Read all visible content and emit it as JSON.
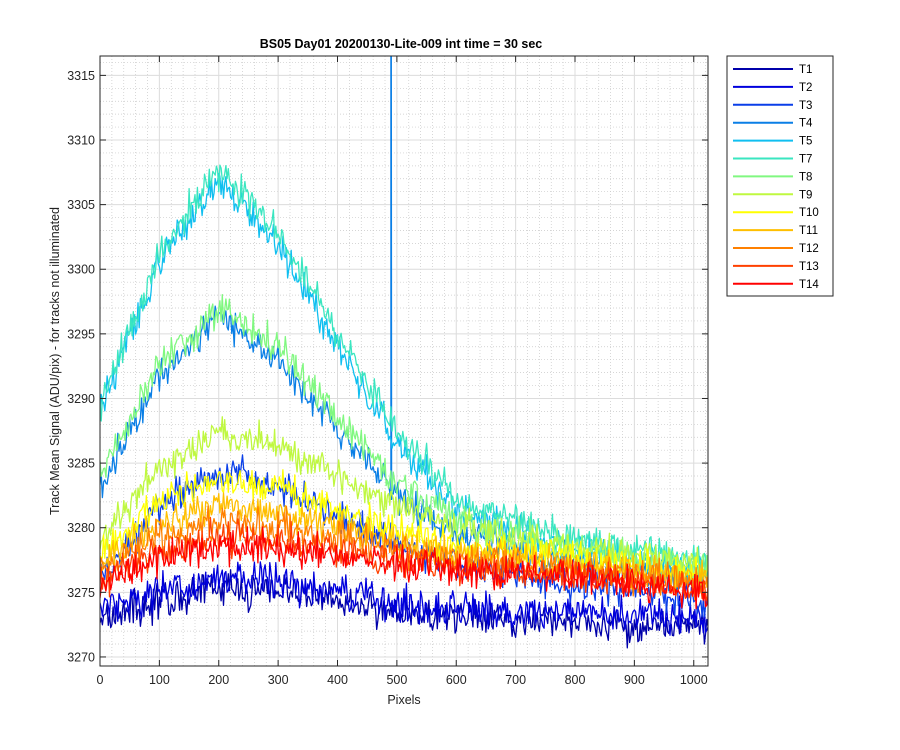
{
  "chart_data": {
    "type": "line",
    "title": "BS05 Day01 20200130-Lite-009 int time = 30 sec",
    "xlabel": "Pixels",
    "ylabel": "Track Mean Signal (ADU/pix) - for tracks not illuminated",
    "xlim": [
      0,
      1024
    ],
    "ylim": [
      3269.3,
      3316.5
    ],
    "xticks": [
      0,
      100,
      200,
      300,
      400,
      500,
      600,
      700,
      800,
      900,
      1000
    ],
    "yticks": [
      3270,
      3275,
      3280,
      3285,
      3290,
      3295,
      3300,
      3305,
      3310,
      3315
    ],
    "grid": true,
    "minor_grid": true,
    "legend_position": "outside-right",
    "series": [
      {
        "name": "T1",
        "color": "#0000aa",
        "profile_x": [
          0,
          200,
          300,
          400,
          500,
          600,
          800,
          1024
        ],
        "profile_y": [
          3273.2,
          3275.3,
          3275.2,
          3274.3,
          3273.5,
          3273.1,
          3272.7,
          3272.3
        ],
        "noise": 1.3
      },
      {
        "name": "T2",
        "color": "#0000dd",
        "profile_x": [
          0,
          200,
          300,
          400,
          500,
          600,
          800,
          1024
        ],
        "profile_y": [
          3274.0,
          3276.0,
          3275.9,
          3275.0,
          3274.2,
          3273.8,
          3273.4,
          3273.0
        ],
        "noise": 1.3
      },
      {
        "name": "T3",
        "color": "#0a3fe8",
        "profile_x": [
          0,
          100,
          200,
          300,
          400,
          500,
          600,
          800,
          1024
        ],
        "profile_y": [
          3276.0,
          3281.5,
          3284.5,
          3283.3,
          3281.0,
          3278.8,
          3277.2,
          3275.6,
          3274.3
        ],
        "noise": 1.2
      },
      {
        "name": "T4",
        "color": "#0a7fe6",
        "profile_x": [
          0,
          100,
          200,
          300,
          400,
          500,
          600,
          800,
          1024
        ],
        "profile_y": [
          3283.0,
          3292.0,
          3296.5,
          3293.0,
          3287.5,
          3282.5,
          3279.5,
          3277.3,
          3275.8
        ],
        "noise": 1.2
      },
      {
        "name": "T5",
        "color": "#10bff0",
        "profile_x": [
          0,
          100,
          200,
          300,
          400,
          500,
          600,
          800,
          1024
        ],
        "profile_y": [
          3289.0,
          3300.5,
          3307.0,
          3302.0,
          3294.0,
          3286.5,
          3281.5,
          3278.2,
          3276.5
        ],
        "noise": 1.2
      },
      {
        "name": "T7",
        "color": "#3ae6c0",
        "profile_x": [
          0,
          100,
          200,
          300,
          400,
          500,
          600,
          800,
          1024
        ],
        "profile_y": [
          3289.5,
          3301.0,
          3307.8,
          3302.8,
          3295.0,
          3287.3,
          3282.3,
          3279.0,
          3277.3
        ],
        "noise": 1.2
      },
      {
        "name": "T8",
        "color": "#80f880",
        "profile_x": [
          0,
          100,
          200,
          300,
          400,
          500,
          600,
          800,
          1024
        ],
        "profile_y": [
          3284.0,
          3292.3,
          3297.2,
          3294.0,
          3288.5,
          3283.5,
          3280.5,
          3278.3,
          3276.8
        ],
        "noise": 1.2
      },
      {
        "name": "T9",
        "color": "#bff840",
        "profile_x": [
          0,
          100,
          200,
          300,
          400,
          500,
          600,
          800,
          1024
        ],
        "profile_y": [
          3279.0,
          3284.8,
          3287.3,
          3286.3,
          3284.0,
          3281.8,
          3280.0,
          3278.3,
          3277.0
        ],
        "noise": 1.2
      },
      {
        "name": "T10",
        "color": "#ffff00",
        "profile_x": [
          0,
          100,
          200,
          300,
          400,
          500,
          600,
          800,
          1024
        ],
        "profile_y": [
          3277.8,
          3282.0,
          3283.8,
          3283.0,
          3281.3,
          3279.8,
          3278.7,
          3277.6,
          3276.4
        ],
        "noise": 1.2
      },
      {
        "name": "T11",
        "color": "#ffbf00",
        "profile_x": [
          0,
          100,
          200,
          300,
          400,
          500,
          600,
          800,
          1024
        ],
        "profile_y": [
          3277.0,
          3280.3,
          3281.8,
          3281.2,
          3280.0,
          3278.8,
          3278.0,
          3277.1,
          3276.0
        ],
        "noise": 1.2
      },
      {
        "name": "T12",
        "color": "#ff8000",
        "profile_x": [
          0,
          100,
          200,
          300,
          400,
          500,
          600,
          800,
          1024
        ],
        "profile_y": [
          3276.5,
          3279.3,
          3280.5,
          3280.0,
          3279.2,
          3278.3,
          3277.6,
          3276.8,
          3275.6
        ],
        "noise": 1.2
      },
      {
        "name": "T13",
        "color": "#ff4000",
        "profile_x": [
          0,
          100,
          200,
          300,
          400,
          500,
          600,
          800,
          1024
        ],
        "profile_y": [
          3275.8,
          3278.2,
          3279.3,
          3279.0,
          3278.3,
          3277.6,
          3277.0,
          3276.3,
          3275.2
        ],
        "noise": 1.2
      },
      {
        "name": "T14",
        "color": "#ff0000",
        "profile_x": [
          0,
          100,
          200,
          300,
          400,
          500,
          600,
          800,
          1024
        ],
        "profile_y": [
          3275.5,
          3277.7,
          3278.6,
          3278.3,
          3277.8,
          3277.2,
          3276.8,
          3276.1,
          3275.0
        ],
        "noise": 1.2
      }
    ],
    "annotations": [
      {
        "series": "T4",
        "type": "spike",
        "x": 490,
        "y_top": 3316.5
      }
    ]
  }
}
